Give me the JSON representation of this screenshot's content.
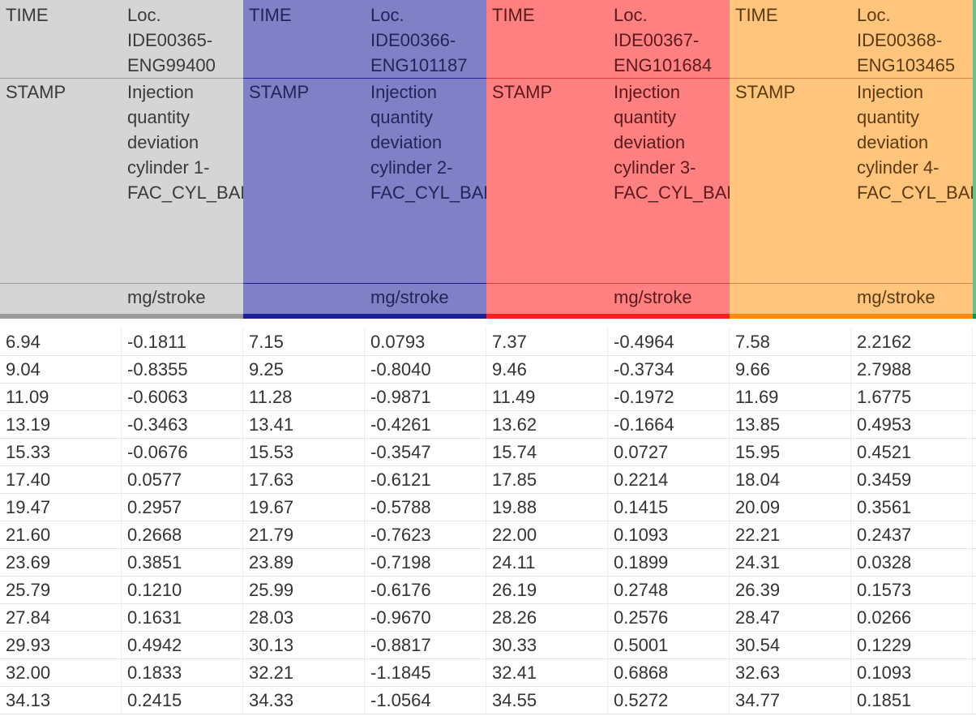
{
  "header": {
    "groups": [
      {
        "time_label_top": "TIME",
        "time_label_bottom": "STAMP",
        "loc_line1": "Loc.",
        "loc_line2": "IDE00365-",
        "loc_line3": "ENG99400",
        "desc_lines": [
          "Injection",
          "quantity",
          "deviation",
          "cylinder 1-",
          "FAC_CYL_BAL"
        ],
        "unit": "mg/stroke",
        "color": "#d5d5d5",
        "accent": "#9b9b9b"
      },
      {
        "time_label_top": "TIME",
        "time_label_bottom": "STAMP",
        "loc_line1": "Loc.",
        "loc_line2": "IDE00366-",
        "loc_line3": "ENG101187",
        "desc_lines": [
          "Injection",
          "quantity",
          "deviation",
          "cylinder 2-",
          "FAC_CYL_BAL"
        ],
        "unit": "mg/stroke",
        "color": "#7f80c5",
        "accent": "#1e2096"
      },
      {
        "time_label_top": "TIME",
        "time_label_bottom": "STAMP",
        "loc_line1": "Loc.",
        "loc_line2": "IDE00367-",
        "loc_line3": "ENG101684",
        "desc_lines": [
          "Injection",
          "quantity",
          "deviation",
          "cylinder 3-",
          "FAC_CYL_BAL"
        ],
        "unit": "mg/stroke",
        "color": "#ff8080",
        "accent": "#ff1f1f"
      },
      {
        "time_label_top": "TIME",
        "time_label_bottom": "STAMP",
        "loc_line1": "Loc.",
        "loc_line2": "IDE00368-",
        "loc_line3": "ENG103465",
        "desc_lines": [
          "Injection",
          "quantity",
          "deviation",
          "cylinder 4-",
          "FAC_CYL_BAL"
        ],
        "unit": "mg/stroke",
        "color": "#ffc57d",
        "accent": "#ff8b12"
      }
    ]
  },
  "rows": [
    [
      "6.94",
      "-0.1811",
      "7.15",
      "0.0793",
      "7.37",
      "-0.4964",
      "7.58",
      "2.2162"
    ],
    [
      "9.04",
      "-0.8355",
      "9.25",
      "-0.8040",
      "9.46",
      "-0.3734",
      "9.66",
      "2.7988"
    ],
    [
      "11.09",
      "-0.6063",
      "11.28",
      "-0.9871",
      "11.49",
      "-0.1972",
      "11.69",
      "1.6775"
    ],
    [
      "13.19",
      "-0.3463",
      "13.41",
      "-0.4261",
      "13.62",
      "-0.1664",
      "13.85",
      "0.4953"
    ],
    [
      "15.33",
      "-0.0676",
      "15.53",
      "-0.3547",
      "15.74",
      "0.0727",
      "15.95",
      "0.4521"
    ],
    [
      "17.40",
      "0.0577",
      "17.63",
      "-0.6121",
      "17.85",
      "0.2214",
      "18.04",
      "0.3459"
    ],
    [
      "19.47",
      "0.2957",
      "19.67",
      "-0.5788",
      "19.88",
      "0.1415",
      "20.09",
      "0.3561"
    ],
    [
      "21.60",
      "0.2668",
      "21.79",
      "-0.7623",
      "22.00",
      "0.1093",
      "22.21",
      "0.2437"
    ],
    [
      "23.69",
      "0.3851",
      "23.89",
      "-0.7198",
      "24.11",
      "0.1899",
      "24.31",
      "0.0328"
    ],
    [
      "25.79",
      "0.1210",
      "25.99",
      "-0.6176",
      "26.19",
      "0.2748",
      "26.39",
      "0.1573"
    ],
    [
      "27.84",
      "0.1631",
      "28.03",
      "-0.9670",
      "28.26",
      "0.2576",
      "28.47",
      "0.0266"
    ],
    [
      "29.93",
      "0.4942",
      "30.13",
      "-0.8817",
      "30.33",
      "0.5001",
      "30.54",
      "0.1229"
    ],
    [
      "32.00",
      "0.1833",
      "32.21",
      "-1.1845",
      "32.41",
      "0.6868",
      "32.63",
      "0.1093"
    ],
    [
      "34.13",
      "0.2415",
      "34.33",
      "-1.0564",
      "34.55",
      "0.5272",
      "34.77",
      "0.1851"
    ]
  ],
  "extra_column_color": "#66c08a",
  "extra_column_accent": "#009a4e"
}
